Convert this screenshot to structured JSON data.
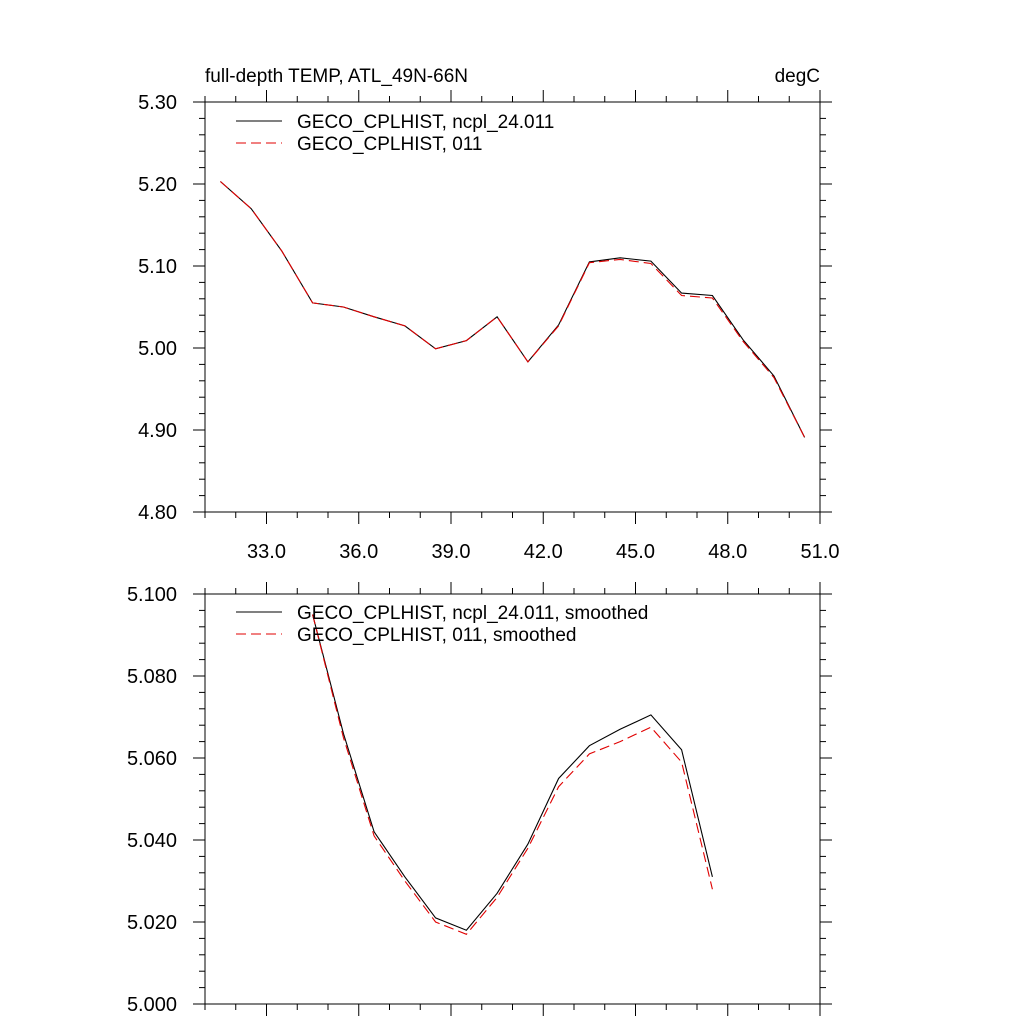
{
  "chart_data": [
    {
      "type": "line",
      "title": "full-depth TEMP, ATL_49N-66N",
      "units": "degC",
      "xlim": [
        31.0,
        51.0
      ],
      "ylim": [
        4.8,
        5.3
      ],
      "xticks": [
        33.0,
        36.0,
        39.0,
        42.0,
        45.0,
        48.0,
        51.0
      ],
      "xtick_labels": [
        "33.0",
        "36.0",
        "39.0",
        "42.0",
        "45.0",
        "48.0",
        "51.0"
      ],
      "yticks": [
        4.8,
        4.9,
        5.0,
        5.1,
        5.2,
        5.3
      ],
      "ytick_labels": [
        "4.80",
        "4.90",
        "5.00",
        "5.10",
        "5.20",
        "5.30"
      ],
      "x": [
        31.5,
        32.5,
        33.5,
        34.5,
        35.5,
        36.5,
        37.5,
        38.5,
        39.5,
        40.5,
        41.5,
        42.5,
        43.5,
        44.5,
        45.5,
        46.5,
        47.5,
        48.5,
        49.5,
        50.5
      ],
      "series": [
        {
          "name": "GECO_CPLHIST, ncpl_24.011",
          "color": "#000000",
          "dash": "solid",
          "values": [
            5.203,
            5.17,
            5.118,
            5.055,
            5.05,
            5.038,
            5.027,
            4.999,
            5.009,
            5.038,
            4.983,
            5.028,
            5.105,
            5.11,
            5.106,
            5.067,
            5.064,
            5.01,
            4.966,
            4.891
          ]
        },
        {
          "name": "GECO_CPLHIST, 011",
          "color": "#e00000",
          "dash": "dashed",
          "values": [
            5.203,
            5.17,
            5.118,
            5.055,
            5.05,
            5.038,
            5.027,
            4.999,
            5.009,
            5.038,
            4.983,
            5.027,
            5.104,
            5.108,
            5.103,
            5.064,
            5.061,
            5.008,
            4.964,
            4.891
          ]
        }
      ]
    },
    {
      "type": "line",
      "xlim": [
        31.0,
        51.0
      ],
      "ylim": [
        5.0,
        5.1
      ],
      "xticks": [
        33.0,
        36.0,
        39.0,
        42.0,
        45.0,
        48.0,
        51.0
      ],
      "yticks": [
        5.0,
        5.02,
        5.04,
        5.06,
        5.08,
        5.1
      ],
      "ytick_labels": [
        "5.000",
        "5.020",
        "5.040",
        "5.060",
        "5.080",
        "5.100"
      ],
      "x": [
        34.5,
        35.5,
        36.5,
        37.5,
        38.5,
        39.5,
        40.5,
        41.5,
        42.5,
        43.5,
        44.5,
        45.5,
        46.5,
        47.5
      ],
      "series": [
        {
          "name": "GECO_CPLHIST, ncpl_24.011, smoothed",
          "color": "#000000",
          "dash": "solid",
          "values": [
            5.095,
            5.066,
            5.042,
            5.031,
            5.021,
            5.018,
            5.027,
            5.039,
            5.055,
            5.063,
            5.067,
            5.0705,
            5.062,
            5.031
          ]
        },
        {
          "name": "GECO_CPLHIST, 011, smoothed",
          "color": "#e00000",
          "dash": "dashed",
          "values": [
            5.095,
            5.065,
            5.041,
            5.03,
            5.02,
            5.017,
            5.026,
            5.038,
            5.053,
            5.061,
            5.064,
            5.0675,
            5.059,
            5.028
          ]
        }
      ]
    }
  ]
}
